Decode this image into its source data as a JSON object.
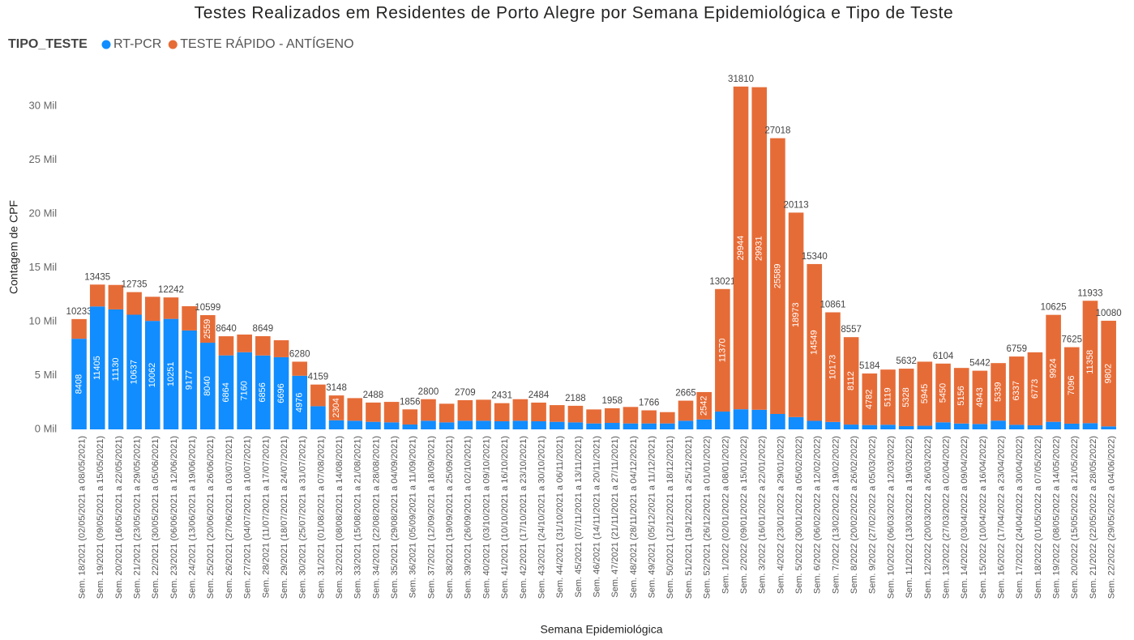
{
  "chart_data": {
    "type": "stacked_bar",
    "title": "Testes Realizados em Residentes de Porto Alegre por Semana Epidemiológica e Tipo de Teste",
    "legend_title": "TIPO_TESTE",
    "x_label": "Semana Epidemiológica",
    "y_label": "Contagem de CPF",
    "categories": [
      "Sem. 18/2021 (02/05/2021 a 08/05/2021)",
      "Sem. 19/2021 (09/05/2021 a 15/05/2021)",
      "Sem. 20/2021 (16/05/2021 a 22/05/2021)",
      "Sem. 21/2021 (23/05/2021 a 29/05/2021)",
      "Sem. 22/2021 (30/05/2021 a 05/06/2021)",
      "Sem. 23/2021 (06/06/2021 a 12/06/2021)",
      "Sem. 24/2021 (13/06/2021 a 19/06/2021)",
      "Sem. 25/2021 (20/06/2021 a 26/06/2021)",
      "Sem. 26/2021 (27/06/2021 a 03/07/2021)",
      "Sem. 27/2021 (04/07/2021 a 10/07/2021)",
      "Sem. 28/2021 (11/07/2021 a 17/07/2021)",
      "Sem. 29/2021 (18/07/2021 a 24/07/2021)",
      "Sem. 30/2021 (25/07/2021 a 31/07/2021)",
      "Sem. 31/2021 (01/08/2021 a 07/08/2021)",
      "Sem. 32/2021 (08/08/2021 a 14/08/2021)",
      "Sem. 33/2021 (15/08/2021 a 21/08/2021)",
      "Sem. 34/2021 (22/08/2021 a 28/08/2021)",
      "Sem. 35/2021 (29/08/2021 a 04/09/2021)",
      "Sem. 36/2021 (05/09/2021 a 11/09/2021)",
      "Sem. 37/2021 (12/09/2021 a 18/09/2021)",
      "Sem. 38/2021 (19/09/2021 a 25/09/2021)",
      "Sem. 39/2021 (26/09/2021 a 02/10/2021)",
      "Sem. 40/2021 (03/10/2021 a 09/10/2021)",
      "Sem. 41/2021 (10/10/2021 a 16/10/2021)",
      "Sem. 42/2021 (17/10/2021 a 23/10/2021)",
      "Sem. 43/2021 (24/10/2021 a 30/10/2021)",
      "Sem. 44/2021 (31/10/2021 a 06/11/2021)",
      "Sem. 45/2021 (07/11/2021 a 13/11/2021)",
      "Sem. 46/2021 (14/11/2021 a 20/11/2021)",
      "Sem. 47/2021 (21/11/2021 a 27/11/2021)",
      "Sem. 48/2021 (28/11/2021 a 04/12/2021)",
      "Sem. 49/2021 (05/12/2021 a 11/12/2021)",
      "Sem. 50/2021 (12/12/2021 a 18/12/2021)",
      "Sem. 51/2021 (19/12/2021 a 25/12/2021)",
      "Sem. 52/2021 (26/12/2021 a 01/01/2022)",
      "Sem. 1/2022 (02/01/2022 a 08/01/2022)",
      "Sem. 2/2022 (09/01/2022 a 15/01/2022)",
      "Sem. 3/2022 (16/01/2022 a 22/01/2022)",
      "Sem. 4/2022 (23/01/2022 a 29/01/2022)",
      "Sem. 5/2022 (30/01/2022 a 05/02/2022)",
      "Sem. 6/2022 (06/02/2022 a 12/02/2022)",
      "Sem. 7/2022 (13/02/2022 a 19/02/2022)",
      "Sem. 8/2022 (20/02/2022 a 26/02/2022)",
      "Sem. 9/2022 (27/02/2022 a 05/03/2022)",
      "Sem. 10/2022 (06/03/2022 a 12/03/2022)",
      "Sem. 11/2022 (13/03/2022 a 19/03/2022)",
      "Sem. 12/2022 (20/03/2022 a 26/03/2022)",
      "Sem. 13/2022 (27/03/2022 a 02/04/2022)",
      "Sem. 14/2022 (03/04/2022 a 09/04/2022)",
      "Sem. 15/2022 (10/04/2022 a 16/04/2022)",
      "Sem. 16/2022 (17/04/2022 a 23/04/2022)",
      "Sem. 17/2022 (24/04/2022 a 30/04/2022)",
      "Sem. 18/2022 (01/05/2022 a 07/05/2022)",
      "Sem. 19/2022 (08/05/2022 a 14/05/2022)",
      "Sem. 20/2022 (15/05/2022 a 21/05/2022)",
      "Sem. 21/2022 (22/05/2022 a 28/05/2022)",
      "Sem. 22/2022 (29/05/2022 a 04/06/2022)"
    ],
    "series": [
      {
        "name": "RT-PCR",
        "color": "#118dff",
        "values": [
          8408,
          11405,
          11130,
          10637,
          10062,
          10251,
          9177,
          8040,
          6864,
          7160,
          6856,
          6696,
          4976,
          2150,
          844,
          800,
          700,
          650,
          450,
          800,
          650,
          800,
          800,
          750,
          800,
          750,
          700,
          650,
          550,
          600,
          550,
          550,
          550,
          800,
          920,
          1651,
          1866,
          1820,
          1429,
          1140,
          791,
          688,
          445,
          402,
          430,
          304,
          335,
          654,
          544,
          499,
          811,
          422,
          377,
          701,
          529,
          575,
          278
        ],
        "value_labels": [
          "8408",
          "11405",
          "11130",
          "10637",
          "10062",
          "10251",
          "9177",
          "8040",
          "6864",
          "7160",
          "6856",
          "6696",
          "4976",
          null,
          null,
          null,
          null,
          null,
          null,
          null,
          null,
          null,
          null,
          null,
          null,
          null,
          null,
          null,
          null,
          null,
          null,
          null,
          null,
          null,
          null,
          null,
          null,
          null,
          null,
          null,
          null,
          null,
          null,
          null,
          null,
          null,
          null,
          null,
          null,
          null,
          null,
          null,
          null,
          null,
          null,
          null,
          null
        ]
      },
      {
        "name": "TESTE RÁPIDO - ANTÍGENO",
        "color": "#e66c37",
        "values": [
          1825,
          2030,
          2270,
          2098,
          2240,
          1991,
          2250,
          2559,
          1776,
          1640,
          1793,
          1574,
          1304,
          2009,
          2304,
          2100,
          1788,
          1900,
          1406,
          2000,
          1730,
          1909,
          1950,
          1681,
          2000,
          1734,
          1550,
          1538,
          1300,
          1358,
          1530,
          1216,
          1050,
          1865,
          2542,
          11370,
          29944,
          29931,
          25589,
          18973,
          14549,
          10173,
          8112,
          4782,
          5119,
          5328,
          5945,
          5450,
          5156,
          4943,
          5339,
          6337,
          6773,
          9924,
          7096,
          11358,
          9802
        ],
        "value_labels": [
          null,
          null,
          null,
          null,
          null,
          null,
          null,
          "2559",
          null,
          null,
          null,
          null,
          null,
          null,
          "2304",
          null,
          null,
          null,
          null,
          null,
          null,
          null,
          null,
          null,
          null,
          null,
          null,
          null,
          null,
          null,
          null,
          null,
          null,
          null,
          "2542",
          "11370",
          "29944",
          "29931",
          "25589",
          "18973",
          "14549",
          "10173",
          "8112",
          "4782",
          "5119",
          "5328",
          "5945",
          "5450",
          "5156",
          "4943",
          "5339",
          "6337",
          "6773",
          "9924",
          "7096",
          "11358",
          "9802"
        ]
      }
    ],
    "total_labels": [
      10233,
      13435,
      null,
      12735,
      null,
      12242,
      null,
      10599,
      8640,
      null,
      8649,
      null,
      6280,
      4159,
      3148,
      null,
      2488,
      null,
      1856,
      2800,
      null,
      2709,
      null,
      2431,
      null,
      2484,
      null,
      2188,
      null,
      1958,
      null,
      1766,
      null,
      2665,
      null,
      13021,
      31810,
      null,
      27018,
      20113,
      15340,
      10861,
      8557,
      5184,
      null,
      5632,
      null,
      6104,
      null,
      5442,
      null,
      6759,
      null,
      10625,
      7625,
      11933,
      10080
    ],
    "ylim": [
      0,
      33000
    ],
    "yticks": [
      {
        "value": 0,
        "label": "0 Mil"
      },
      {
        "value": 5000,
        "label": "5 Mil"
      },
      {
        "value": 10000,
        "label": "10 Mil"
      },
      {
        "value": 15000,
        "label": "15 Mil"
      },
      {
        "value": 20000,
        "label": "20 Mil"
      },
      {
        "value": 25000,
        "label": "25 Mil"
      },
      {
        "value": 30000,
        "label": "30 Mil"
      }
    ],
    "grid": false
  }
}
